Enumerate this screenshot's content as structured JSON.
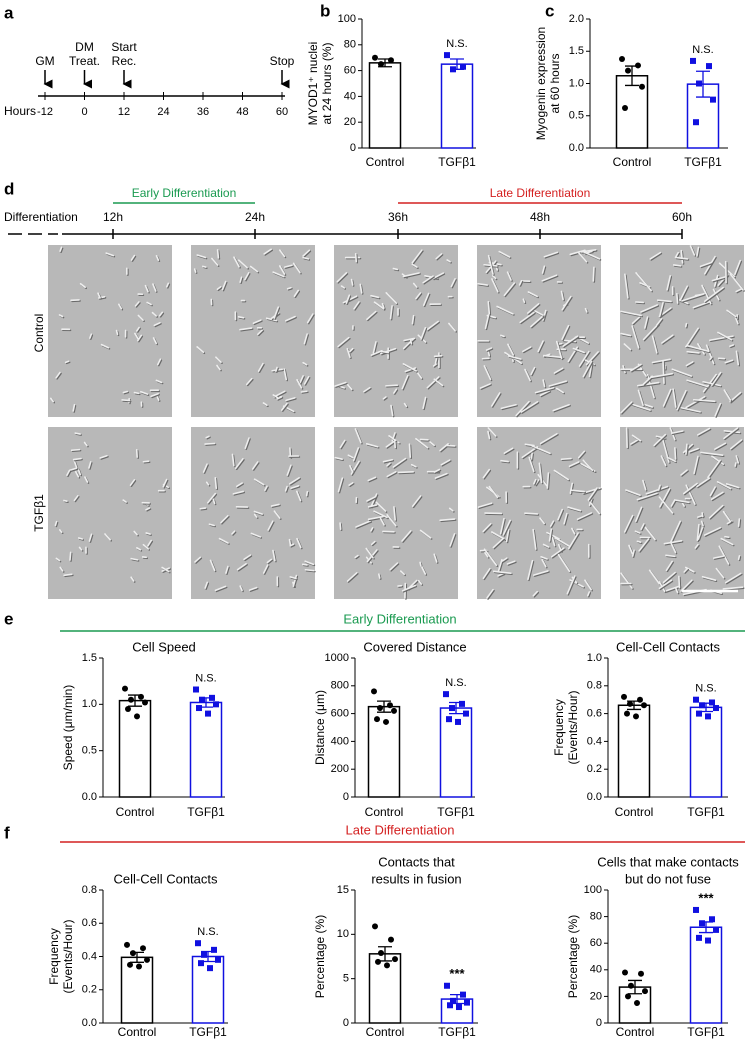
{
  "figure": {
    "panel_labels": [
      "a",
      "b",
      "c",
      "d",
      "e",
      "f"
    ]
  },
  "timeline": {
    "events": [
      [
        "GM"
      ],
      [
        "DM",
        "Treat."
      ],
      [
        "Start",
        "Rec."
      ],
      [
        "Stop"
      ]
    ],
    "axis_label": "Hours",
    "ticks": [
      -12,
      0,
      12,
      24,
      36,
      48,
      60
    ]
  },
  "imaging": {
    "axis_label": "Differentiation",
    "times": [
      "12h",
      "24h",
      "36h",
      "48h",
      "60h"
    ],
    "early": "Early Differentiation",
    "early_color": "#1a9a50",
    "late": "Late Differentiation",
    "late_color": "#d42020",
    "rows": [
      "Control",
      "TGFβ1"
    ]
  },
  "sections": [
    {
      "title": "Early Differentiation",
      "color": "#1a9a50"
    },
    {
      "title": "Late Differentiation",
      "color": "#d42020"
    }
  ],
  "chart_data": [
    {
      "type": "bar",
      "ylabel": [
        "MYOD1⁺ nuclei",
        "at 24 hours (%)"
      ],
      "categories": [
        "Control",
        "TGFβ1"
      ],
      "colors": [
        "#000000",
        "#1010e0"
      ],
      "values": [
        66,
        65
      ],
      "errors": [
        3,
        4
      ],
      "points": [
        [
          70,
          68,
          65
        ],
        [
          72,
          63,
          61
        ]
      ],
      "annotation": "N.S.",
      "ylim": [
        0,
        100
      ],
      "yticks": [
        0,
        20,
        40,
        60,
        80,
        100
      ]
    },
    {
      "type": "bar",
      "ylabel": [
        "Myogenin expression",
        "at 60 hours"
      ],
      "categories": [
        "Control",
        "TGFβ1"
      ],
      "colors": [
        "#000000",
        "#1010e0"
      ],
      "values": [
        1.12,
        0.99
      ],
      "errors": [
        0.15,
        0.2
      ],
      "points": [
        [
          1.38,
          1.28,
          1.2,
          0.95,
          0.62
        ],
        [
          1.35,
          1.27,
          1.0,
          0.75,
          0.4
        ]
      ],
      "annotation": "N.S.",
      "ylim": [
        0,
        2
      ],
      "yticks": [
        {
          "value": 0,
          "label": "0.0"
        },
        0.5,
        {
          "value": 1,
          "label": "1.0"
        },
        1.5,
        {
          "value": 2,
          "label": "2.0"
        }
      ]
    },
    {
      "type": "bar",
      "title": [
        "Cell Speed"
      ],
      "ylabel": [
        "Speed (μm/min)"
      ],
      "categories": [
        "Control",
        "TGFβ1"
      ],
      "colors": [
        "#000000",
        "#1010e0"
      ],
      "values": [
        1.04,
        1.02
      ],
      "errors": [
        0.06,
        0.05
      ],
      "points": [
        [
          1.17,
          1.08,
          1.05,
          1.02,
          0.95,
          0.87
        ],
        [
          1.16,
          1.07,
          1.05,
          1.0,
          0.96,
          0.9
        ]
      ],
      "annotation": "N.S.",
      "ylim": [
        0,
        1.5
      ],
      "yticks": [
        {
          "value": 0,
          "label": "0.0"
        },
        0.5,
        {
          "value": 1,
          "label": "1.0"
        },
        1.5
      ]
    },
    {
      "type": "bar",
      "title": [
        "Covered Distance"
      ],
      "ylabel": [
        "Distance (μm)"
      ],
      "categories": [
        "Control",
        "TGFβ1"
      ],
      "colors": [
        "#000000",
        "#1010e0"
      ],
      "values": [
        650,
        640
      ],
      "errors": [
        40,
        40
      ],
      "points": [
        [
          760,
          660,
          640,
          620,
          560,
          540
        ],
        [
          740,
          670,
          640,
          600,
          560,
          540
        ]
      ],
      "annotation": "N.S.",
      "ylim": [
        0,
        1000
      ],
      "yticks": [
        0,
        200,
        400,
        600,
        800,
        1000
      ]
    },
    {
      "type": "bar",
      "title": [
        "Cell-Cell Contacts"
      ],
      "ylabel": [
        "Frequency",
        "(Events/Hour)"
      ],
      "categories": [
        "Control",
        "TGFβ1"
      ],
      "colors": [
        "#000000",
        "#1010e0"
      ],
      "values": [
        0.66,
        0.645
      ],
      "errors": [
        0.03,
        0.03
      ],
      "points": [
        [
          0.72,
          0.7,
          0.67,
          0.66,
          0.6,
          0.58
        ],
        [
          0.7,
          0.68,
          0.66,
          0.64,
          0.6,
          0.58
        ]
      ],
      "annotation": "N.S.",
      "ylim": [
        0,
        1
      ],
      "yticks": [
        {
          "value": 0,
          "label": "0.0"
        },
        0.2,
        0.4,
        0.6,
        0.8,
        {
          "value": 1,
          "label": "1.0"
        }
      ]
    },
    {
      "type": "bar",
      "title": [
        "Cell-Cell Contacts"
      ],
      "ylabel": [
        "Frequency",
        "(Events/Hour)"
      ],
      "categories": [
        "Control",
        "TGFβ1"
      ],
      "colors": [
        "#000000",
        "#1010e0"
      ],
      "values": [
        0.395,
        0.4
      ],
      "errors": [
        0.03,
        0.03
      ],
      "points": [
        [
          0.47,
          0.45,
          0.42,
          0.38,
          0.35,
          0.34
        ],
        [
          0.48,
          0.44,
          0.41,
          0.38,
          0.36,
          0.33
        ]
      ],
      "annotation": "N.S.",
      "ylim": [
        0,
        0.8
      ],
      "yticks": [
        {
          "value": 0,
          "label": "0.0"
        },
        0.2,
        0.4,
        0.6,
        0.8
      ]
    },
    {
      "type": "bar",
      "title": [
        "Contacts that",
        "results in fusion"
      ],
      "ylabel": [
        "Percentage (%)"
      ],
      "categories": [
        "Control",
        "TGFβ1"
      ],
      "colors": [
        "#000000",
        "#1010e0"
      ],
      "values": [
        7.8,
        2.7
      ],
      "errors": [
        0.8,
        0.5
      ],
      "points": [
        [
          10.9,
          9.4,
          7.9,
          7.2,
          6.9,
          6.5
        ],
        [
          4.2,
          3.2,
          2.5,
          2.3,
          2.0,
          1.8
        ]
      ],
      "annotation": "***",
      "ylim": [
        0,
        15
      ],
      "yticks": [
        0,
        5,
        10,
        15
      ]
    },
    {
      "type": "bar",
      "title": [
        "Cells that make contacts",
        "but do not fuse"
      ],
      "ylabel": [
        "Percentage (%)"
      ],
      "categories": [
        "Control",
        "TGFβ1"
      ],
      "colors": [
        "#000000",
        "#1010e0"
      ],
      "values": [
        27,
        72
      ],
      "errors": [
        5,
        4
      ],
      "points": [
        [
          38,
          37,
          28,
          24,
          20,
          15
        ],
        [
          85,
          78,
          75,
          70,
          64,
          62
        ]
      ],
      "annotation": "***",
      "ylim": [
        0,
        100
      ],
      "yticks": [
        0,
        20,
        40,
        60,
        80,
        100
      ]
    }
  ]
}
